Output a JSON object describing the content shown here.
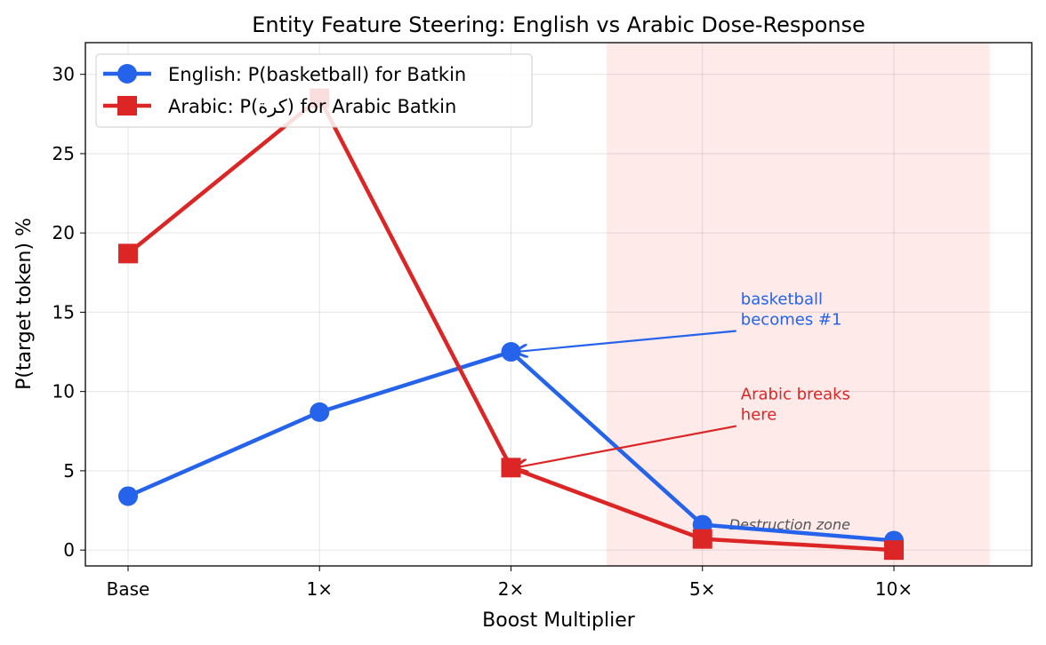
{
  "chart_data": {
    "type": "line",
    "title": "Entity Feature Steering: English vs Arabic Dose-Response",
    "xlabel": "Boost Multiplier",
    "ylabel": "P(target token) %",
    "categories": [
      "Base",
      "1×",
      "2×",
      "5×",
      "10×"
    ],
    "ylim": [
      -1,
      32
    ],
    "yticks": [
      0,
      5,
      10,
      15,
      20,
      25,
      30
    ],
    "grid": true,
    "legend_placement": "top-left",
    "series": [
      {
        "name": "English: P(basketball) for Batkin",
        "color": "#2563eb",
        "marker": "circle",
        "values": [
          3.4,
          8.7,
          12.5,
          1.6,
          0.6
        ]
      },
      {
        "name": "Arabic: P(كرة) for Arabic Batkin",
        "color": "#dc2626",
        "marker": "square",
        "values": [
          18.7,
          28.5,
          5.2,
          0.7,
          0.0
        ]
      }
    ],
    "shaded_region": {
      "x_from": 2.5,
      "x_to": 4.5,
      "color": "#fecaca",
      "label": "Destruction zone"
    },
    "annotations": [
      {
        "lines": [
          "basketball",
          "becomes #1"
        ],
        "color": "#2563eb",
        "target_category": "2×",
        "target_value": 12.5,
        "text_x": 3.2,
        "text_y": 15.5
      },
      {
        "lines": [
          "Arabic breaks",
          "here"
        ],
        "color": "#dc2626",
        "target_category": "2×",
        "target_value": 5.2,
        "text_x": 3.2,
        "text_y": 9.5
      }
    ]
  }
}
